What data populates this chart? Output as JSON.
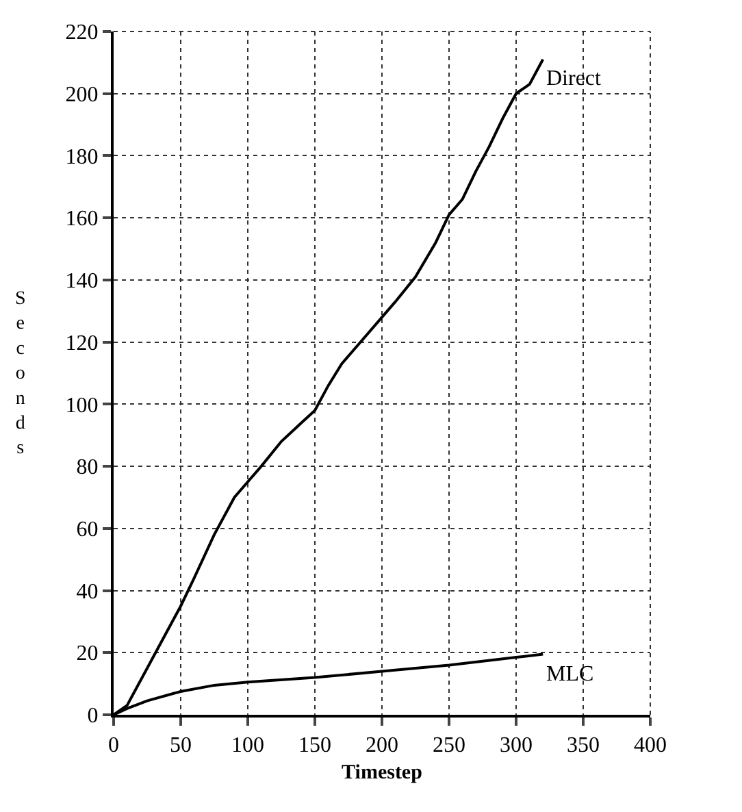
{
  "chart_data": {
    "type": "line",
    "xlabel": "Timestep",
    "ylabel": "Seconds",
    "series": [
      {
        "name": "Direct",
        "color": "#000000",
        "x": [
          0,
          10,
          25,
          40,
          50,
          60,
          75,
          90,
          100,
          110,
          125,
          140,
          150,
          160,
          170,
          180,
          200,
          210,
          225,
          240,
          250,
          260,
          270,
          280,
          290,
          300,
          310,
          320
        ],
        "values": [
          0,
          3,
          15,
          27,
          35,
          44,
          58,
          70,
          75,
          80,
          88,
          94,
          98,
          106,
          113,
          118,
          128,
          133,
          141,
          152,
          161,
          166,
          175,
          183,
          192,
          200,
          203,
          211
        ]
      },
      {
        "name": "MLC",
        "color": "#000000",
        "x": [
          0,
          10,
          25,
          50,
          75,
          100,
          150,
          200,
          250,
          300,
          320
        ],
        "values": [
          0,
          2,
          4.5,
          7.5,
          9.5,
          10.5,
          12,
          14,
          16,
          18.5,
          19.5
        ]
      }
    ],
    "xlim": [
      0,
      400
    ],
    "xticks": [
      0,
      50,
      100,
      150,
      200,
      250,
      300,
      350,
      400
    ],
    "ylim": [
      0,
      220
    ],
    "yticks": [
      0,
      20,
      40,
      60,
      80,
      100,
      120,
      140,
      160,
      180,
      200,
      220
    ],
    "grid": true,
    "legend": false,
    "marker": "none",
    "line_style": "solid"
  }
}
